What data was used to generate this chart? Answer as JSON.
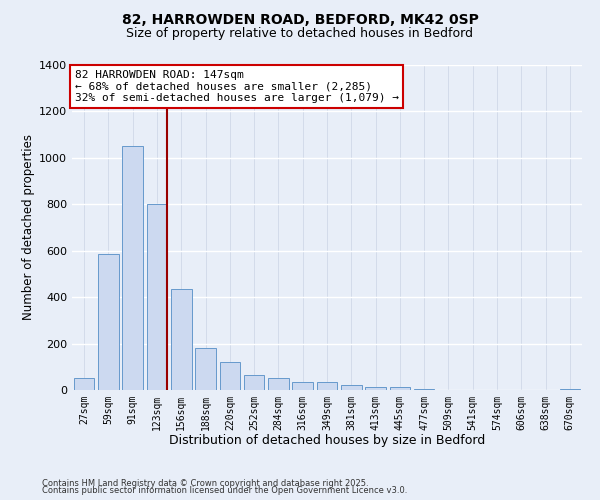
{
  "title_line1": "82, HARROWDEN ROAD, BEDFORD, MK42 0SP",
  "title_line2": "Size of property relative to detached houses in Bedford",
  "xlabel": "Distribution of detached houses by size in Bedford",
  "ylabel": "Number of detached properties",
  "bar_labels": [
    "27sqm",
    "59sqm",
    "91sqm",
    "123sqm",
    "156sqm",
    "188sqm",
    "220sqm",
    "252sqm",
    "284sqm",
    "316sqm",
    "349sqm",
    "381sqm",
    "413sqm",
    "445sqm",
    "477sqm",
    "509sqm",
    "541sqm",
    "574sqm",
    "606sqm",
    "638sqm",
    "670sqm"
  ],
  "bar_values": [
    50,
    585,
    1050,
    800,
    435,
    180,
    120,
    65,
    50,
    35,
    35,
    20,
    15,
    12,
    5,
    0,
    0,
    0,
    0,
    0,
    5
  ],
  "bar_color": "#ccd9f0",
  "bar_edge_color": "#6699cc",
  "ylim": [
    0,
    1400
  ],
  "yticks": [
    0,
    200,
    400,
    600,
    800,
    1000,
    1200,
    1400
  ],
  "vline_x_index": 3,
  "vline_color": "#990000",
  "annotation_title": "82 HARROWDEN ROAD: 147sqm",
  "annotation_line2": "← 68% of detached houses are smaller (2,285)",
  "annotation_line3": "32% of semi-detached houses are larger (1,079) →",
  "annotation_box_facecolor": "#ffffff",
  "annotation_box_edgecolor": "#cc0000",
  "bg_color": "#e8eef8",
  "grid_color": "#d0d8e8",
  "footer1": "Contains HM Land Registry data © Crown copyright and database right 2025.",
  "footer2": "Contains public sector information licensed under the Open Government Licence v3.0."
}
